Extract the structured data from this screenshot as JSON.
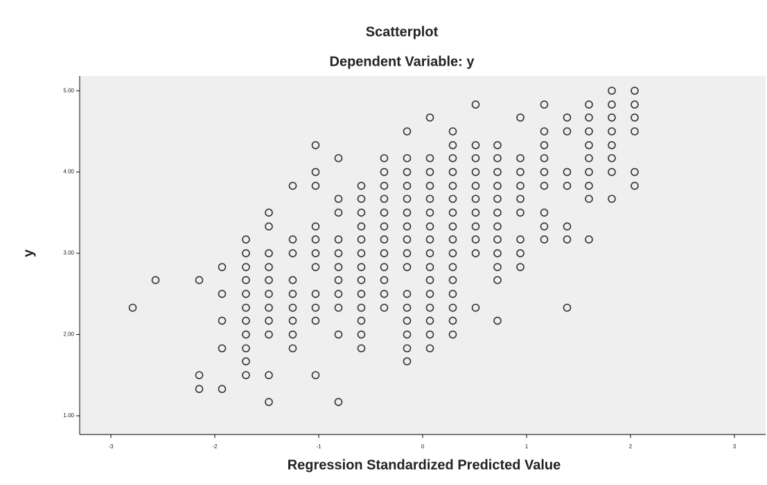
{
  "chart_data": {
    "type": "scatter",
    "title": "Scatterplot",
    "subtitle": "Dependent Variable: y",
    "x_label": "Regression Standardized Predicted Value",
    "y_label": "y",
    "xlim": [
      -3.3,
      3.3
    ],
    "ylim": [
      0.77,
      5.18
    ],
    "xticks": [
      -3,
      -2,
      -1,
      0,
      1,
      2,
      3
    ],
    "yticks": [
      {
        "value": 1,
        "label": "1.00"
      },
      {
        "value": 2,
        "label": "2.00"
      },
      {
        "value": 3,
        "label": "3.00"
      },
      {
        "value": 4,
        "label": "4.00"
      },
      {
        "value": 5,
        "label": "5.00"
      }
    ],
    "color": "#333333",
    "x": [
      -2.79,
      -2.57,
      -2.15,
      -2.15,
      -2.15,
      -1.93,
      -1.93,
      -1.93,
      -1.93,
      -1.93,
      -1.7,
      -1.7,
      -1.7,
      -1.7,
      -1.7,
      -1.7,
      -1.7,
      -1.7,
      -1.7,
      -1.7,
      -1.7,
      -1.48,
      -1.48,
      -1.48,
      -1.48,
      -1.48,
      -1.48,
      -1.48,
      -1.48,
      -1.48,
      -1.48,
      -1.48,
      -1.25,
      -1.25,
      -1.25,
      -1.25,
      -1.25,
      -1.25,
      -1.25,
      -1.25,
      -1.25,
      -1.03,
      -1.03,
      -1.03,
      -1.03,
      -1.03,
      -1.03,
      -1.03,
      -1.03,
      -1.03,
      -1.03,
      -1.03,
      -0.81,
      -0.81,
      -0.81,
      -0.81,
      -0.81,
      -0.81,
      -0.81,
      -0.81,
      -0.81,
      -0.81,
      -0.81,
      -0.59,
      -0.59,
      -0.59,
      -0.59,
      -0.59,
      -0.59,
      -0.59,
      -0.59,
      -0.59,
      -0.59,
      -0.59,
      -0.59,
      -0.59,
      -0.37,
      -0.37,
      -0.37,
      -0.37,
      -0.37,
      -0.37,
      -0.37,
      -0.37,
      -0.37,
      -0.37,
      -0.37,
      -0.37,
      -0.15,
      -0.15,
      -0.15,
      -0.15,
      -0.15,
      -0.15,
      -0.15,
      -0.15,
      -0.15,
      -0.15,
      -0.15,
      -0.15,
      -0.15,
      -0.15,
      -0.15,
      -0.15,
      0.07,
      0.07,
      0.07,
      0.07,
      0.07,
      0.07,
      0.07,
      0.07,
      0.07,
      0.07,
      0.07,
      0.07,
      0.07,
      0.07,
      0.07,
      0.07,
      0.29,
      0.29,
      0.29,
      0.29,
      0.29,
      0.29,
      0.29,
      0.29,
      0.29,
      0.29,
      0.29,
      0.29,
      0.29,
      0.29,
      0.29,
      0.29,
      0.51,
      0.51,
      0.51,
      0.51,
      0.51,
      0.51,
      0.51,
      0.51,
      0.51,
      0.51,
      0.51,
      0.72,
      0.72,
      0.72,
      0.72,
      0.72,
      0.72,
      0.72,
      0.72,
      0.72,
      0.72,
      0.72,
      0.72,
      0.94,
      0.94,
      0.94,
      0.94,
      0.94,
      0.94,
      0.94,
      0.94,
      0.94,
      1.17,
      1.17,
      1.17,
      1.17,
      1.17,
      1.17,
      1.17,
      1.17,
      1.17,
      1.39,
      1.39,
      1.39,
      1.39,
      1.39,
      1.39,
      1.39,
      1.6,
      1.6,
      1.6,
      1.6,
      1.6,
      1.6,
      1.6,
      1.6,
      1.6,
      1.82,
      1.82,
      1.82,
      1.82,
      1.82,
      1.82,
      1.82,
      1.82,
      2.04,
      2.04,
      2.04,
      2.04,
      2.04,
      2.04
    ],
    "y": [
      2.33,
      2.67,
      2.67,
      1.5,
      1.33,
      2.83,
      2.5,
      2.17,
      1.83,
      1.33,
      3.17,
      3,
      2.83,
      2.67,
      2.5,
      2.33,
      2.17,
      2,
      1.83,
      1.67,
      1.5,
      3.5,
      3.33,
      3,
      2.83,
      2.67,
      2.5,
      2.33,
      2.17,
      2,
      1.5,
      1.17,
      3.83,
      3.17,
      3,
      2.67,
      2.5,
      2.33,
      2.17,
      2,
      1.83,
      4.33,
      4,
      3.83,
      3.33,
      3.17,
      3,
      2.83,
      2.5,
      2.33,
      2.17,
      1.5,
      4.17,
      3.67,
      3.5,
      3.17,
      3,
      2.83,
      2.67,
      2.5,
      2.33,
      2,
      1.17,
      3.83,
      3.67,
      3.5,
      3.33,
      3.17,
      3,
      2.83,
      2.67,
      2.5,
      2.33,
      2.17,
      2,
      1.83,
      4.17,
      4,
      3.83,
      3.67,
      3.5,
      3.33,
      3.17,
      3,
      2.83,
      2.67,
      2.5,
      2.33,
      4.5,
      4.17,
      4,
      3.83,
      3.67,
      3.5,
      3.33,
      3.17,
      3,
      2.83,
      2.5,
      2.33,
      2.17,
      2,
      1.83,
      1.67,
      4.67,
      4.17,
      4,
      3.83,
      3.67,
      3.5,
      3.33,
      3.17,
      3,
      2.83,
      2.67,
      2.5,
      2.33,
      2.17,
      2,
      1.83,
      4.5,
      4.33,
      4.17,
      4,
      3.83,
      3.67,
      3.5,
      3.33,
      3.17,
      3,
      2.83,
      2.67,
      2.5,
      2.33,
      2.17,
      2,
      4.83,
      4.33,
      4.17,
      4,
      3.83,
      3.67,
      3.5,
      3.33,
      3.17,
      3,
      2.33,
      4.33,
      4.17,
      4,
      3.83,
      3.67,
      3.5,
      3.33,
      3.17,
      3,
      2.83,
      2.67,
      2.17,
      4.67,
      4.17,
      4,
      3.83,
      3.67,
      3.5,
      3.17,
      3,
      2.83,
      4.83,
      4.5,
      4.33,
      4.17,
      4,
      3.83,
      3.5,
      3.33,
      3.17,
      4.67,
      4.5,
      4,
      3.83,
      3.33,
      3.17,
      2.33,
      4.83,
      4.67,
      4.5,
      4.33,
      4.17,
      4,
      3.83,
      3.67,
      3.17,
      5,
      4.83,
      4.67,
      4.5,
      4.33,
      4.17,
      4,
      3.67,
      5,
      4.83,
      4.67,
      4.5,
      4,
      3.83
    ]
  }
}
